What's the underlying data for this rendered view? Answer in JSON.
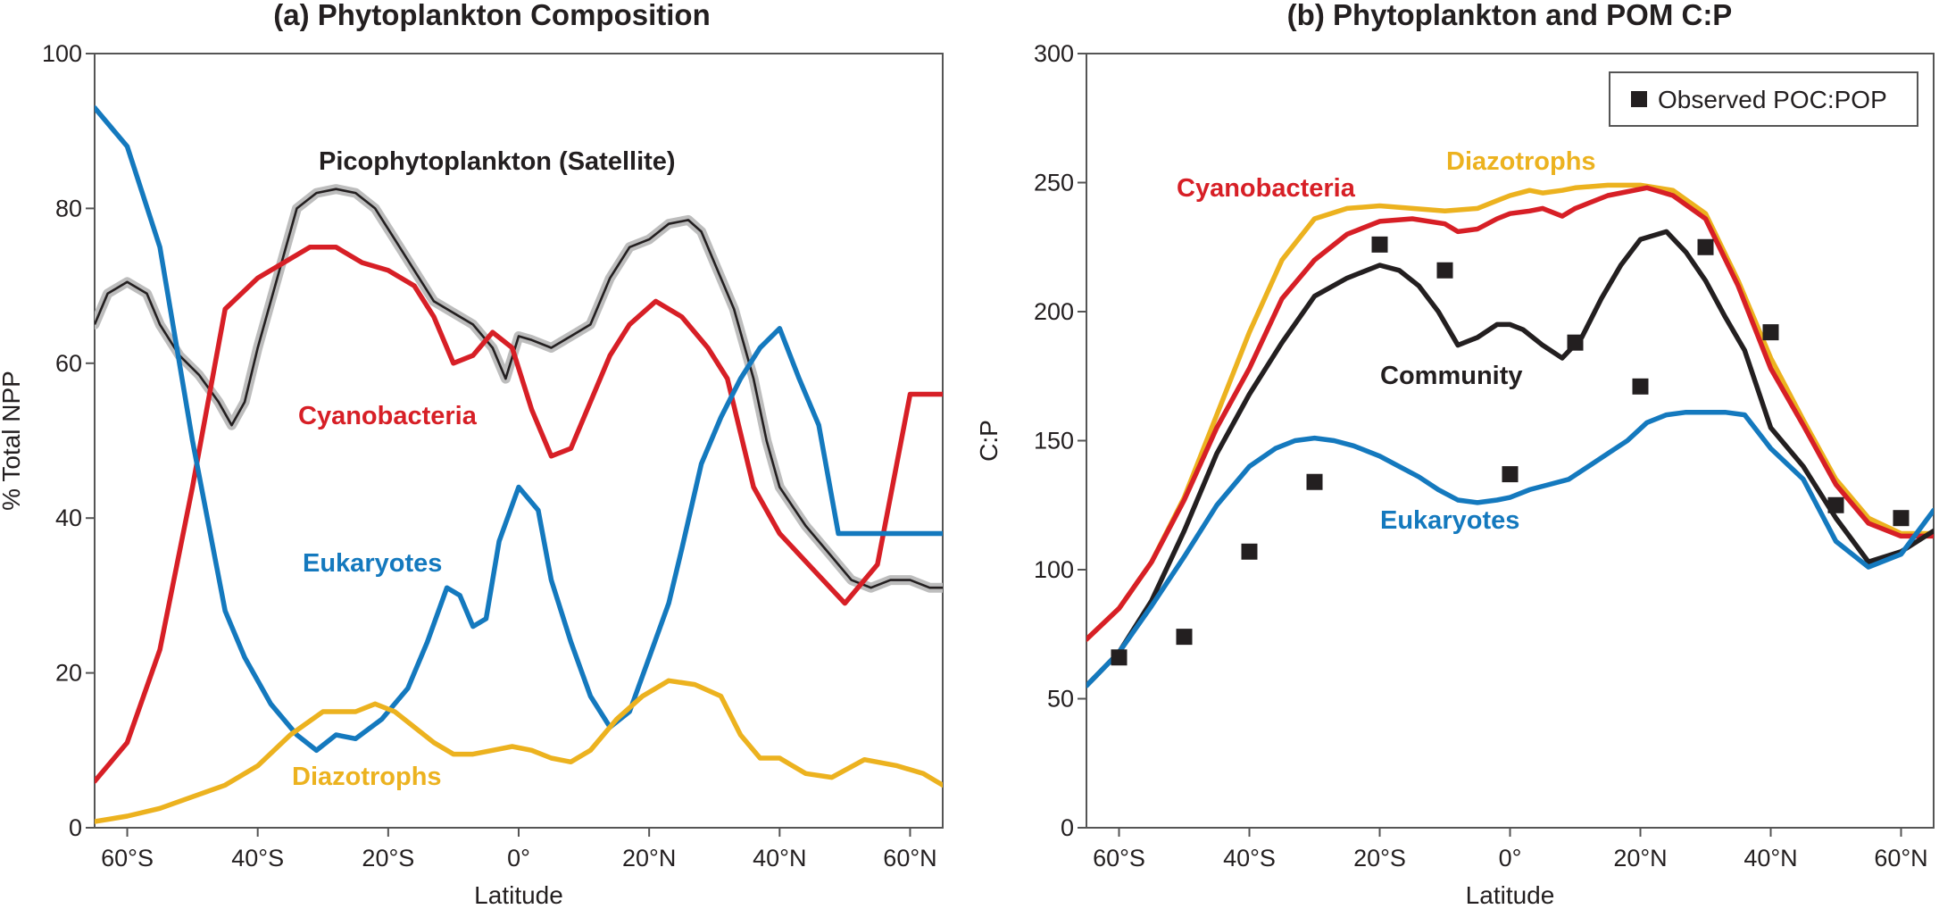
{
  "colors": {
    "black": "#231f20",
    "red": "#d71f26",
    "blue": "#1479be",
    "yellow": "#ecb21f",
    "band": "#bdbdbd",
    "axis": "#555555"
  },
  "chart_data": [
    {
      "type": "line",
      "title": "(a) Phytoplankton Composition",
      "xlabel": "Latitude",
      "ylabel": "% Total NPP",
      "xlim": [
        -65,
        65
      ],
      "ylim": [
        0,
        100
      ],
      "xticks": [
        -60,
        -40,
        -20,
        0,
        20,
        40,
        60
      ],
      "xtick_labels": [
        "60°S",
        "40°S",
        "20°S",
        "0°",
        "20°N",
        "40°N",
        "60°N"
      ],
      "yticks": [
        0,
        20,
        40,
        60,
        80,
        100
      ],
      "ytick_labels": [
        "0",
        "20",
        "40",
        "60",
        "80",
        "100"
      ],
      "series": [
        {
          "key": "pico",
          "name": "Picophytoplankton (Satellite)",
          "color": "#231f20",
          "band": true,
          "x": [
            -65,
            -63,
            -60,
            -57,
            -55,
            -52,
            -49,
            -46,
            -44,
            -42,
            -40,
            -37,
            -34,
            -31,
            -28,
            -25,
            -22,
            -19,
            -16,
            -13,
            -10,
            -7,
            -4,
            -2,
            0,
            2,
            5,
            8,
            11,
            14,
            17,
            20,
            23,
            26,
            28,
            30,
            33,
            36,
            38,
            40,
            44,
            48,
            51,
            54,
            57,
            60,
            63,
            65
          ],
          "values": [
            65,
            69,
            70.5,
            69,
            65,
            61,
            58.5,
            55,
            52,
            55,
            62,
            71,
            80,
            82,
            82.5,
            82,
            80,
            76,
            72,
            68,
            66.5,
            65,
            62,
            58,
            63.5,
            63,
            62,
            63.5,
            65,
            71,
            75,
            76,
            78,
            78.5,
            77,
            73,
            67,
            58,
            50,
            44,
            39,
            35,
            32,
            31,
            32,
            32,
            31,
            31
          ]
        },
        {
          "key": "cyano",
          "name": "Cyanobacteria",
          "color": "#d71f26",
          "x": [
            -65,
            -60,
            -55,
            -50,
            -45,
            -40,
            -36,
            -32,
            -28,
            -24,
            -20,
            -16,
            -13,
            -10,
            -7,
            -4,
            -1,
            2,
            5,
            8,
            11,
            14,
            17,
            21,
            25,
            29,
            32,
            36,
            40,
            45,
            50,
            55,
            60,
            65
          ],
          "values": [
            6,
            11,
            23,
            44,
            67,
            71,
            73,
            75,
            75,
            73,
            72,
            70,
            66,
            60,
            61,
            64,
            62,
            54,
            48,
            49,
            55,
            61,
            65,
            68,
            66,
            62,
            58,
            44,
            38,
            33.5,
            29,
            34,
            56,
            56
          ]
        },
        {
          "key": "eukaryotes",
          "name": "Eukaryotes",
          "color": "#1479be",
          "x": [
            -65,
            -60,
            -55,
            -50,
            -45,
            -42,
            -38,
            -34,
            -31,
            -28,
            -25,
            -21,
            -17,
            -14,
            -11,
            -9,
            -7,
            -5,
            -3,
            0,
            3,
            5,
            8,
            11,
            14,
            17,
            20,
            23,
            25,
            28,
            31,
            34,
            37,
            40,
            43,
            46,
            49,
            54,
            58,
            61,
            65
          ],
          "values": [
            93,
            88,
            75,
            50,
            28,
            22,
            16,
            12,
            10,
            12,
            11.5,
            14,
            18,
            24,
            31,
            30,
            26,
            27,
            37,
            44,
            41,
            32,
            24,
            17,
            13,
            15,
            22,
            29,
            36,
            47,
            53,
            58,
            62,
            64.5,
            58,
            52,
            38,
            38,
            38,
            38,
            38
          ]
        },
        {
          "key": "diazotrophs",
          "name": "Diazotrophs",
          "color": "#ecb21f",
          "x": [
            -65,
            -60,
            -55,
            -50,
            -45,
            -40,
            -35,
            -30,
            -27,
            -25,
            -22,
            -19,
            -16,
            -13,
            -10,
            -7,
            -4,
            -1,
            2,
            5,
            8,
            11,
            15,
            19,
            23,
            27,
            31,
            34,
            37,
            40,
            44,
            48,
            53,
            58,
            62,
            65
          ],
          "values": [
            0.8,
            1.5,
            2.5,
            4,
            5.5,
            8,
            12,
            15,
            15,
            15,
            16,
            15,
            13,
            11,
            9.5,
            9.5,
            10,
            10.5,
            10,
            9,
            8.5,
            10,
            14,
            17,
            19,
            18.5,
            17,
            12,
            9,
            9,
            7,
            6.5,
            8.8,
            8,
            7,
            5.5
          ]
        }
      ],
      "annotations": [
        {
          "key": "pico",
          "text": "Picophytoplankton (Satellite)"
        },
        {
          "key": "cyano",
          "text": "Cyanobacteria"
        },
        {
          "key": "eukaryotes",
          "text": "Eukaryotes"
        },
        {
          "key": "diazotrophs",
          "text": "Diazotrophs"
        }
      ]
    },
    {
      "type": "line",
      "title": "(b) Phytoplankton and POM C:P",
      "xlabel": "Latitude",
      "ylabel": "C:P",
      "xlim": [
        -65,
        65
      ],
      "ylim": [
        0,
        300
      ],
      "xticks": [
        -60,
        -40,
        -20,
        0,
        20,
        40,
        60
      ],
      "xtick_labels": [
        "60°S",
        "40°S",
        "20°S",
        "0°",
        "20°N",
        "40°N",
        "60°N"
      ],
      "yticks": [
        0,
        50,
        100,
        150,
        200,
        250,
        300
      ],
      "ytick_labels": [
        "0",
        "50",
        "100",
        "150",
        "200",
        "250",
        "300"
      ],
      "legend": {
        "position": "top-right",
        "entries": [
          "Observed POC:POP"
        ]
      },
      "series": [
        {
          "key": "diazotrophs",
          "name": "Diazotrophs",
          "color": "#ecb21f",
          "x": [
            -65,
            -60,
            -55,
            -50,
            -45,
            -40,
            -35,
            -30,
            -25,
            -20,
            -15,
            -10,
            -5,
            -2,
            0,
            3,
            5,
            8,
            10,
            15,
            20,
            25,
            30,
            35,
            40,
            45,
            50,
            55,
            60,
            65
          ],
          "values": [
            73,
            85,
            103,
            128,
            160,
            192,
            220,
            236,
            240,
            241,
            240,
            239,
            240,
            243,
            245,
            247,
            246,
            247,
            248,
            249,
            249,
            247,
            238,
            212,
            182,
            158,
            135,
            120,
            114,
            114
          ]
        },
        {
          "key": "cyano",
          "name": "Cyanobacteria",
          "color": "#d71f26",
          "x": [
            -65,
            -60,
            -55,
            -50,
            -45,
            -40,
            -35,
            -30,
            -25,
            -20,
            -15,
            -10,
            -8,
            -5,
            -2,
            0,
            3,
            5,
            8,
            10,
            15,
            21,
            25,
            30,
            35,
            40,
            45,
            50,
            55,
            60,
            65
          ],
          "values": [
            73,
            85,
            103,
            127,
            155,
            178,
            205,
            220,
            230,
            235,
            236,
            234,
            231,
            232,
            236,
            238,
            239,
            240,
            237,
            240,
            245,
            248,
            245,
            236,
            210,
            178,
            156,
            133,
            118,
            113,
            113
          ]
        },
        {
          "key": "community",
          "name": "Community",
          "color": "#231f20",
          "x": [
            -65,
            -60,
            -55,
            -50,
            -45,
            -40,
            -35,
            -30,
            -25,
            -20,
            -17,
            -14,
            -11,
            -8,
            -5,
            -2,
            0,
            2,
            5,
            8,
            11,
            14,
            17,
            20,
            24,
            27,
            30,
            33,
            36,
            40,
            45,
            50,
            55,
            60,
            65
          ],
          "values": [
            55,
            68,
            88,
            115,
            145,
            168,
            188,
            206,
            213,
            218,
            216,
            210,
            200,
            187,
            190,
            195,
            195,
            193,
            187,
            182,
            190,
            205,
            218,
            228,
            231,
            223,
            212,
            198,
            185,
            155,
            140,
            120,
            103,
            107,
            115
          ]
        },
        {
          "key": "eukaryotes",
          "name": "Eukaryotes",
          "color": "#1479be",
          "x": [
            -65,
            -60,
            -55,
            -50,
            -45,
            -40,
            -36,
            -33,
            -30,
            -27,
            -24,
            -20,
            -17,
            -14,
            -11,
            -8,
            -5,
            -2,
            0,
            3,
            6,
            9,
            12,
            15,
            18,
            21,
            24,
            27,
            30,
            33,
            36,
            40,
            45,
            50,
            55,
            60,
            65
          ],
          "values": [
            55,
            68,
            86,
            105,
            125,
            140,
            147,
            150,
            151,
            150,
            148,
            144,
            140,
            136,
            131,
            127,
            126,
            127,
            128,
            131,
            133,
            135,
            140,
            145,
            150,
            157,
            160,
            161,
            161,
            161,
            160,
            147,
            135,
            111,
            101,
            106,
            123
          ]
        },
        {
          "key": "observed",
          "name": "Observed POC:POP",
          "color": "#231f20",
          "marker": "square",
          "x": [
            -60,
            -50,
            -40,
            -30,
            -20,
            -10,
            0,
            10,
            20,
            30,
            40,
            50,
            60
          ],
          "values": [
            66,
            74,
            107,
            134,
            226,
            216,
            137,
            188,
            171,
            225,
            192,
            125,
            120
          ]
        }
      ],
      "annotations": [
        {
          "key": "diazotrophs",
          "text": "Diazotrophs"
        },
        {
          "key": "cyano",
          "text": "Cyanobacteria"
        },
        {
          "key": "community",
          "text": "Community"
        },
        {
          "key": "eukaryotes",
          "text": "Eukaryotes"
        }
      ]
    }
  ]
}
